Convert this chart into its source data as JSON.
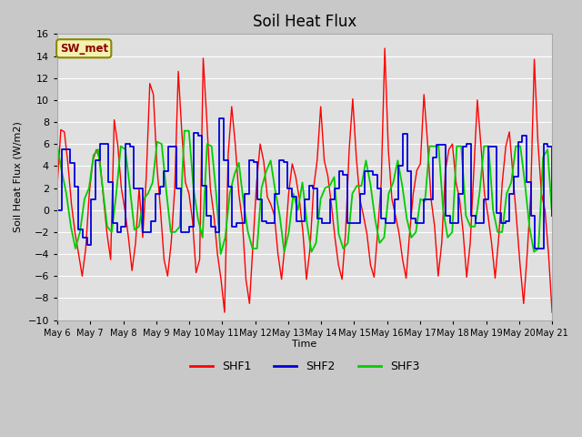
{
  "title": "Soil Heat Flux",
  "ylabel": "Soil Heat Flux (W/m2)",
  "xlabel": "Time",
  "annotation": "SW_met",
  "ylim": [
    -10,
    16
  ],
  "yticks": [
    -10,
    -8,
    -6,
    -4,
    -2,
    0,
    2,
    4,
    6,
    8,
    10,
    12,
    14,
    16
  ],
  "x_tick_labels": [
    "May 6",
    "May 7",
    "May 8",
    "May 9",
    "May 10",
    "May 11",
    "May 12",
    "May 13",
    "May 14",
    "May 15",
    "May 16",
    "May 17",
    "May 18",
    "May 19",
    "May 20",
    "May 21"
  ],
  "shf1_color": "#ff0000",
  "shf2_color": "#0000dd",
  "shf3_color": "#00cc00",
  "fig_bg": "#c8c8c8",
  "plot_bg": "#e0e0e0",
  "grid_color": "#ffffff",
  "shf1": [
    2.2,
    7.3,
    7.1,
    4.2,
    0.5,
    -2.1,
    -4.0,
    -6.0,
    -3.5,
    1.5,
    4.5,
    5.5,
    4.5,
    1.0,
    -2.2,
    -4.5,
    8.2,
    5.9,
    2.0,
    0.0,
    -2.5,
    -5.5,
    -3.0,
    2.0,
    -2.5,
    3.0,
    11.5,
    10.5,
    4.0,
    0.0,
    -4.5,
    -6.0,
    -3.0,
    2.0,
    12.6,
    7.0,
    2.5,
    1.5,
    -1.0,
    -5.7,
    -4.5,
    13.8,
    8.2,
    2.0,
    -0.5,
    -4.0,
    -6.3,
    -9.3,
    5.0,
    9.4,
    6.0,
    1.5,
    -1.0,
    -6.3,
    -8.5,
    -3.0,
    2.5,
    6.0,
    4.4,
    1.2,
    0.5,
    -0.5,
    -4.0,
    -6.3,
    -3.0,
    1.5,
    4.2,
    3.0,
    1.0,
    -2.0,
    -6.3,
    -3.5,
    2.0,
    4.5,
    9.4,
    4.5,
    3.1,
    0.5,
    -2.5,
    -5.0,
    -6.3,
    -2.0,
    5.5,
    10.1,
    4.8,
    1.0,
    -0.5,
    -2.2,
    -5.0,
    -6.1,
    -2.0,
    2.5,
    14.7,
    5.5,
    1.0,
    -0.5,
    -2.1,
    -4.5,
    -6.2,
    -2.0,
    1.5,
    3.6,
    4.2,
    10.5,
    6.2,
    1.0,
    -1.5,
    -6.0,
    -3.0,
    3.5,
    5.5,
    6.0,
    2.5,
    1.0,
    -2.0,
    -6.1,
    -3.0,
    3.5,
    10.0,
    5.9,
    1.5,
    -0.5,
    -3.0,
    -6.2,
    -2.5,
    2.5,
    5.8,
    7.1,
    3.2,
    -0.8,
    -5.0,
    -8.5,
    -4.0,
    1.5,
    13.7,
    6.3,
    1.5,
    0.0,
    -4.0,
    -9.3
  ],
  "shf2": [
    0.0,
    5.5,
    5.5,
    4.3,
    2.1,
    -1.8,
    -2.5,
    -3.2,
    1.0,
    4.5,
    6.0,
    6.0,
    2.5,
    -1.2,
    -2.0,
    -1.5,
    6.0,
    5.8,
    2.0,
    2.0,
    -2.0,
    -2.0,
    -1.0,
    1.5,
    2.1,
    3.5,
    5.8,
    5.8,
    2.0,
    -2.0,
    -2.0,
    -1.5,
    7.0,
    6.8,
    2.2,
    -0.5,
    -1.5,
    -2.0,
    8.3,
    4.5,
    2.1,
    -1.5,
    -1.2,
    -1.2,
    1.5,
    4.5,
    4.4,
    1.0,
    -1.0,
    -1.2,
    -1.2,
    1.5,
    4.5,
    4.4,
    2.0,
    1.2,
    -1.0,
    -1.0,
    1.0,
    2.2,
    2.0,
    -0.8,
    -1.2,
    -1.2,
    1.0,
    2.0,
    3.5,
    3.2,
    -1.2,
    -1.2,
    -1.2,
    1.5,
    3.5,
    3.5,
    3.2,
    2.0,
    -0.8,
    -1.2,
    -1.2,
    1.0,
    4.0,
    6.9,
    3.5,
    -0.8,
    -1.2,
    -1.2,
    1.0,
    1.0,
    4.8,
    5.9,
    5.9,
    -0.5,
    -1.2,
    -1.2,
    1.5,
    5.8,
    6.0,
    -0.5,
    -1.2,
    -1.2,
    1.0,
    5.8,
    5.8,
    -0.3,
    -1.2,
    -1.0,
    1.5,
    3.0,
    6.2,
    6.8,
    2.5,
    -0.5,
    -3.5,
    -3.5,
    6.0,
    5.8,
    -0.5
  ],
  "shf3": [
    5.8,
    3.5,
    1.5,
    -1.5,
    -3.5,
    -2.0,
    1.0,
    2.0,
    5.0,
    5.5,
    2.0,
    -1.5,
    -2.0,
    1.5,
    5.8,
    5.5,
    2.0,
    -1.8,
    -1.5,
    1.0,
    1.5,
    2.5,
    6.2,
    6.0,
    1.8,
    -2.0,
    -2.0,
    -1.5,
    7.2,
    7.2,
    2.0,
    -0.8,
    -2.5,
    6.0,
    5.8,
    1.5,
    -4.0,
    -2.5,
    1.5,
    3.2,
    4.3,
    0.8,
    -2.0,
    -3.5,
    -3.5,
    2.0,
    3.5,
    4.5,
    1.8,
    -0.5,
    -3.8,
    -2.0,
    1.5,
    0.0,
    2.5,
    -1.2,
    -3.8,
    -3.0,
    1.0,
    2.0,
    2.2,
    3.0,
    -2.2,
    -3.5,
    -3.0,
    1.5,
    2.2,
    2.2,
    4.5,
    2.3,
    -0.8,
    -3.0,
    -2.5,
    1.5,
    2.5,
    4.5,
    2.2,
    -0.8,
    -2.5,
    -2.0,
    1.0,
    0.8,
    5.8,
    5.8,
    5.8,
    0.0,
    -2.5,
    -2.0,
    5.8,
    5.8,
    -0.5,
    -1.5,
    -1.5,
    1.5,
    5.8,
    5.8,
    0.0,
    -2.0,
    -2.0,
    1.5,
    2.5,
    5.8,
    5.8,
    2.5,
    -1.5,
    -3.8,
    -3.5,
    4.8,
    5.5,
    -0.5
  ]
}
